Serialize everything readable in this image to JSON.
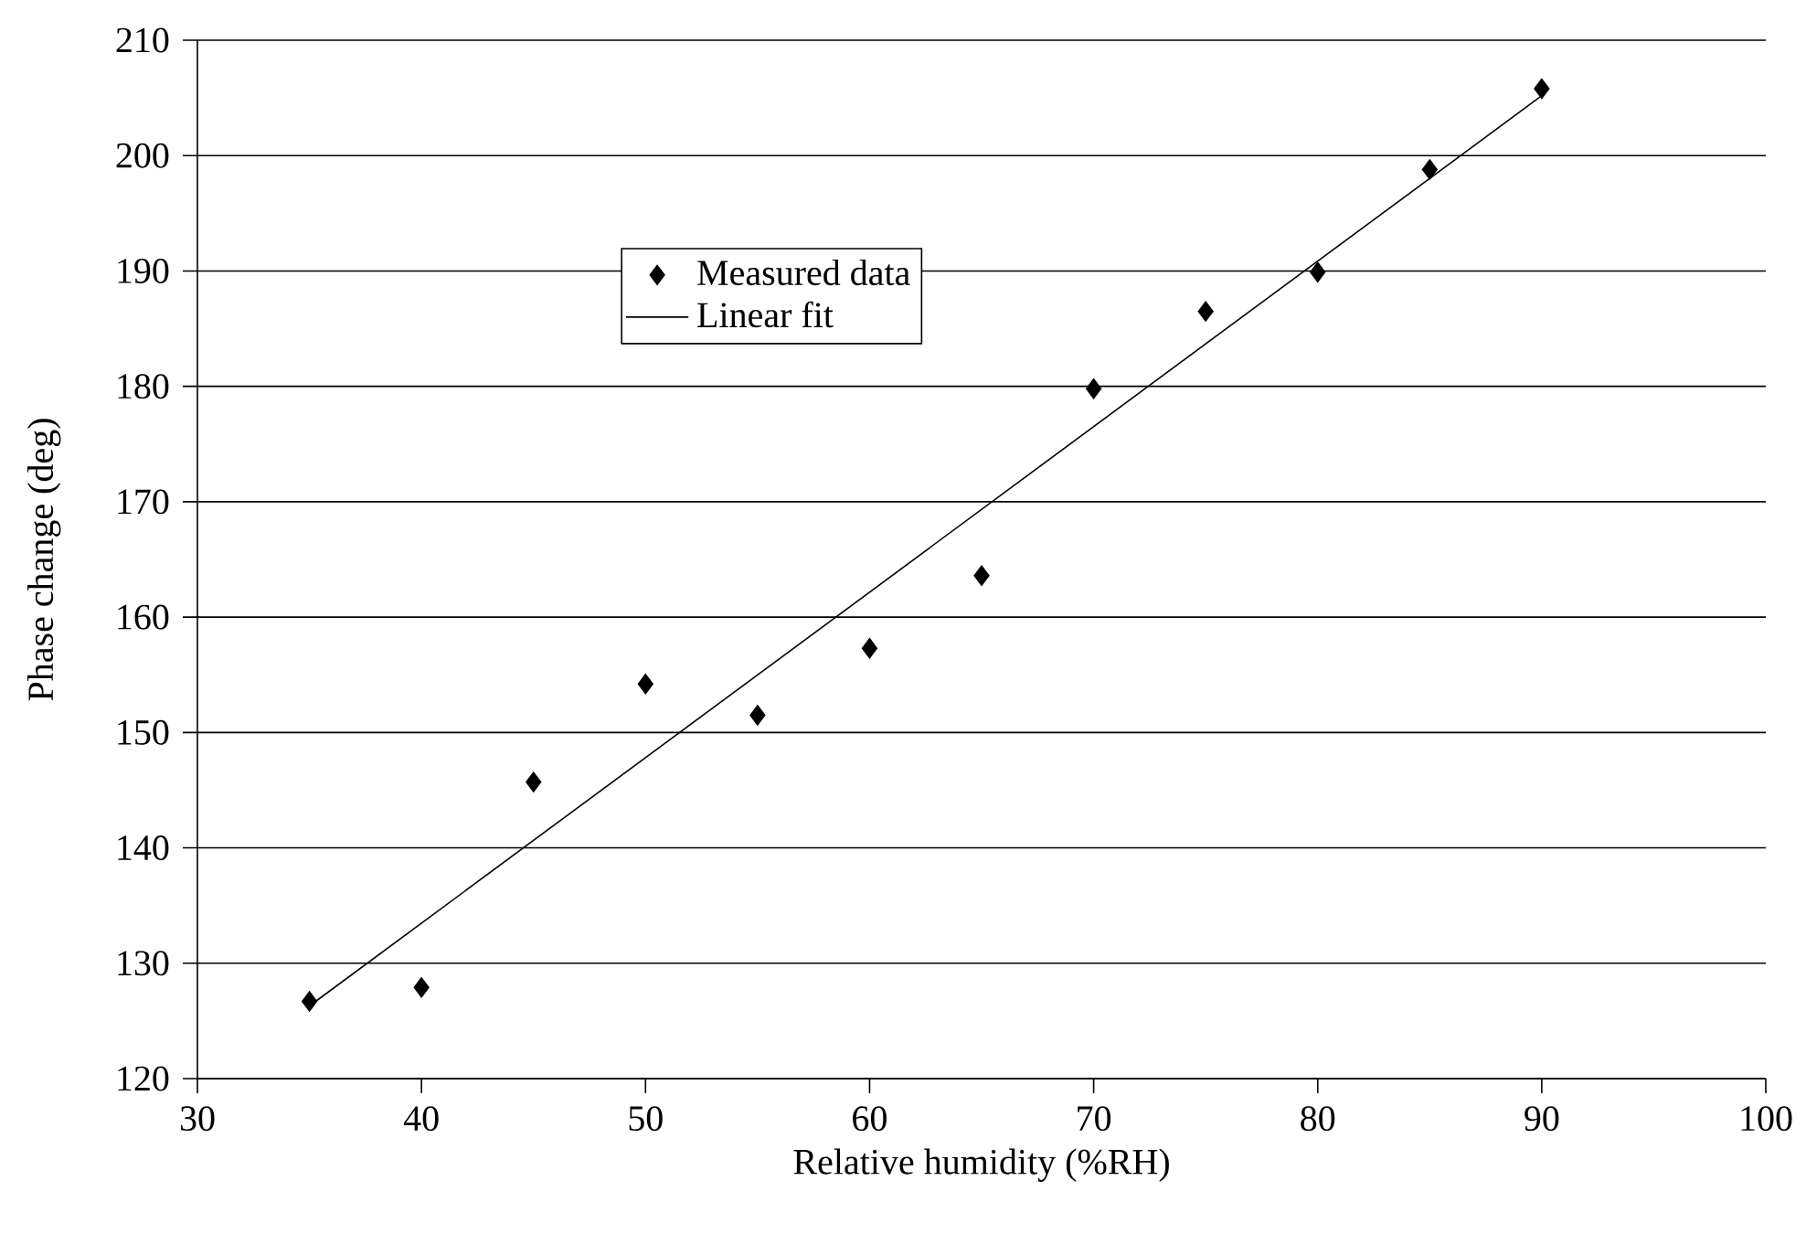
{
  "chart_data": {
    "type": "scatter",
    "xlabel": "Relative humidity (%RH)",
    "ylabel": "Phase change (deg)",
    "xlim": [
      30,
      100
    ],
    "xticks": [
      30,
      40,
      50,
      60,
      70,
      80,
      90,
      100
    ],
    "ylim": [
      120,
      210
    ],
    "yticks": [
      120,
      130,
      140,
      150,
      160,
      170,
      180,
      190,
      200,
      210
    ],
    "grid": "y",
    "legend": "top left",
    "marker": "diamond",
    "series": [
      {
        "name": "Measured data",
        "color": "#000000",
        "x": [
          35,
          40,
          45,
          50,
          55,
          60,
          65,
          70,
          75,
          80,
          85,
          90
        ],
        "values": [
          126.7,
          127.9,
          145.7,
          154.2,
          151.5,
          157.3,
          163.6,
          179.8,
          186.5,
          189.9,
          198.8,
          205.8
        ]
      },
      {
        "name": "Linear fit",
        "type": "line",
        "marker": "none",
        "color": "#000000",
        "x": [
          35,
          90
        ],
        "values": [
          126.3,
          205.2
        ]
      }
    ]
  }
}
